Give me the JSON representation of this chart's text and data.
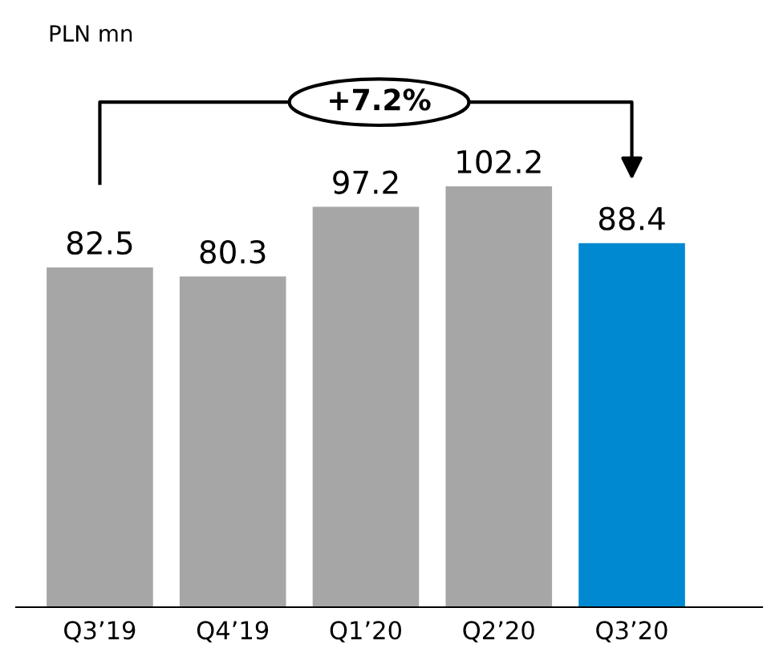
{
  "chart_data": {
    "type": "bar",
    "categories": [
      "Q3’19",
      "Q4’19",
      "Q1’20",
      "Q2’20",
      "Q3’20"
    ],
    "values": [
      82.5,
      80.3,
      97.2,
      102.2,
      88.4
    ],
    "colors": [
      "#a6a6a6",
      "#a6a6a6",
      "#a6a6a6",
      "#a6a6a6",
      "#0089d0"
    ],
    "data_labels": true,
    "annotations": [
      "PLN mn",
      "+7.2%"
    ]
  }
}
